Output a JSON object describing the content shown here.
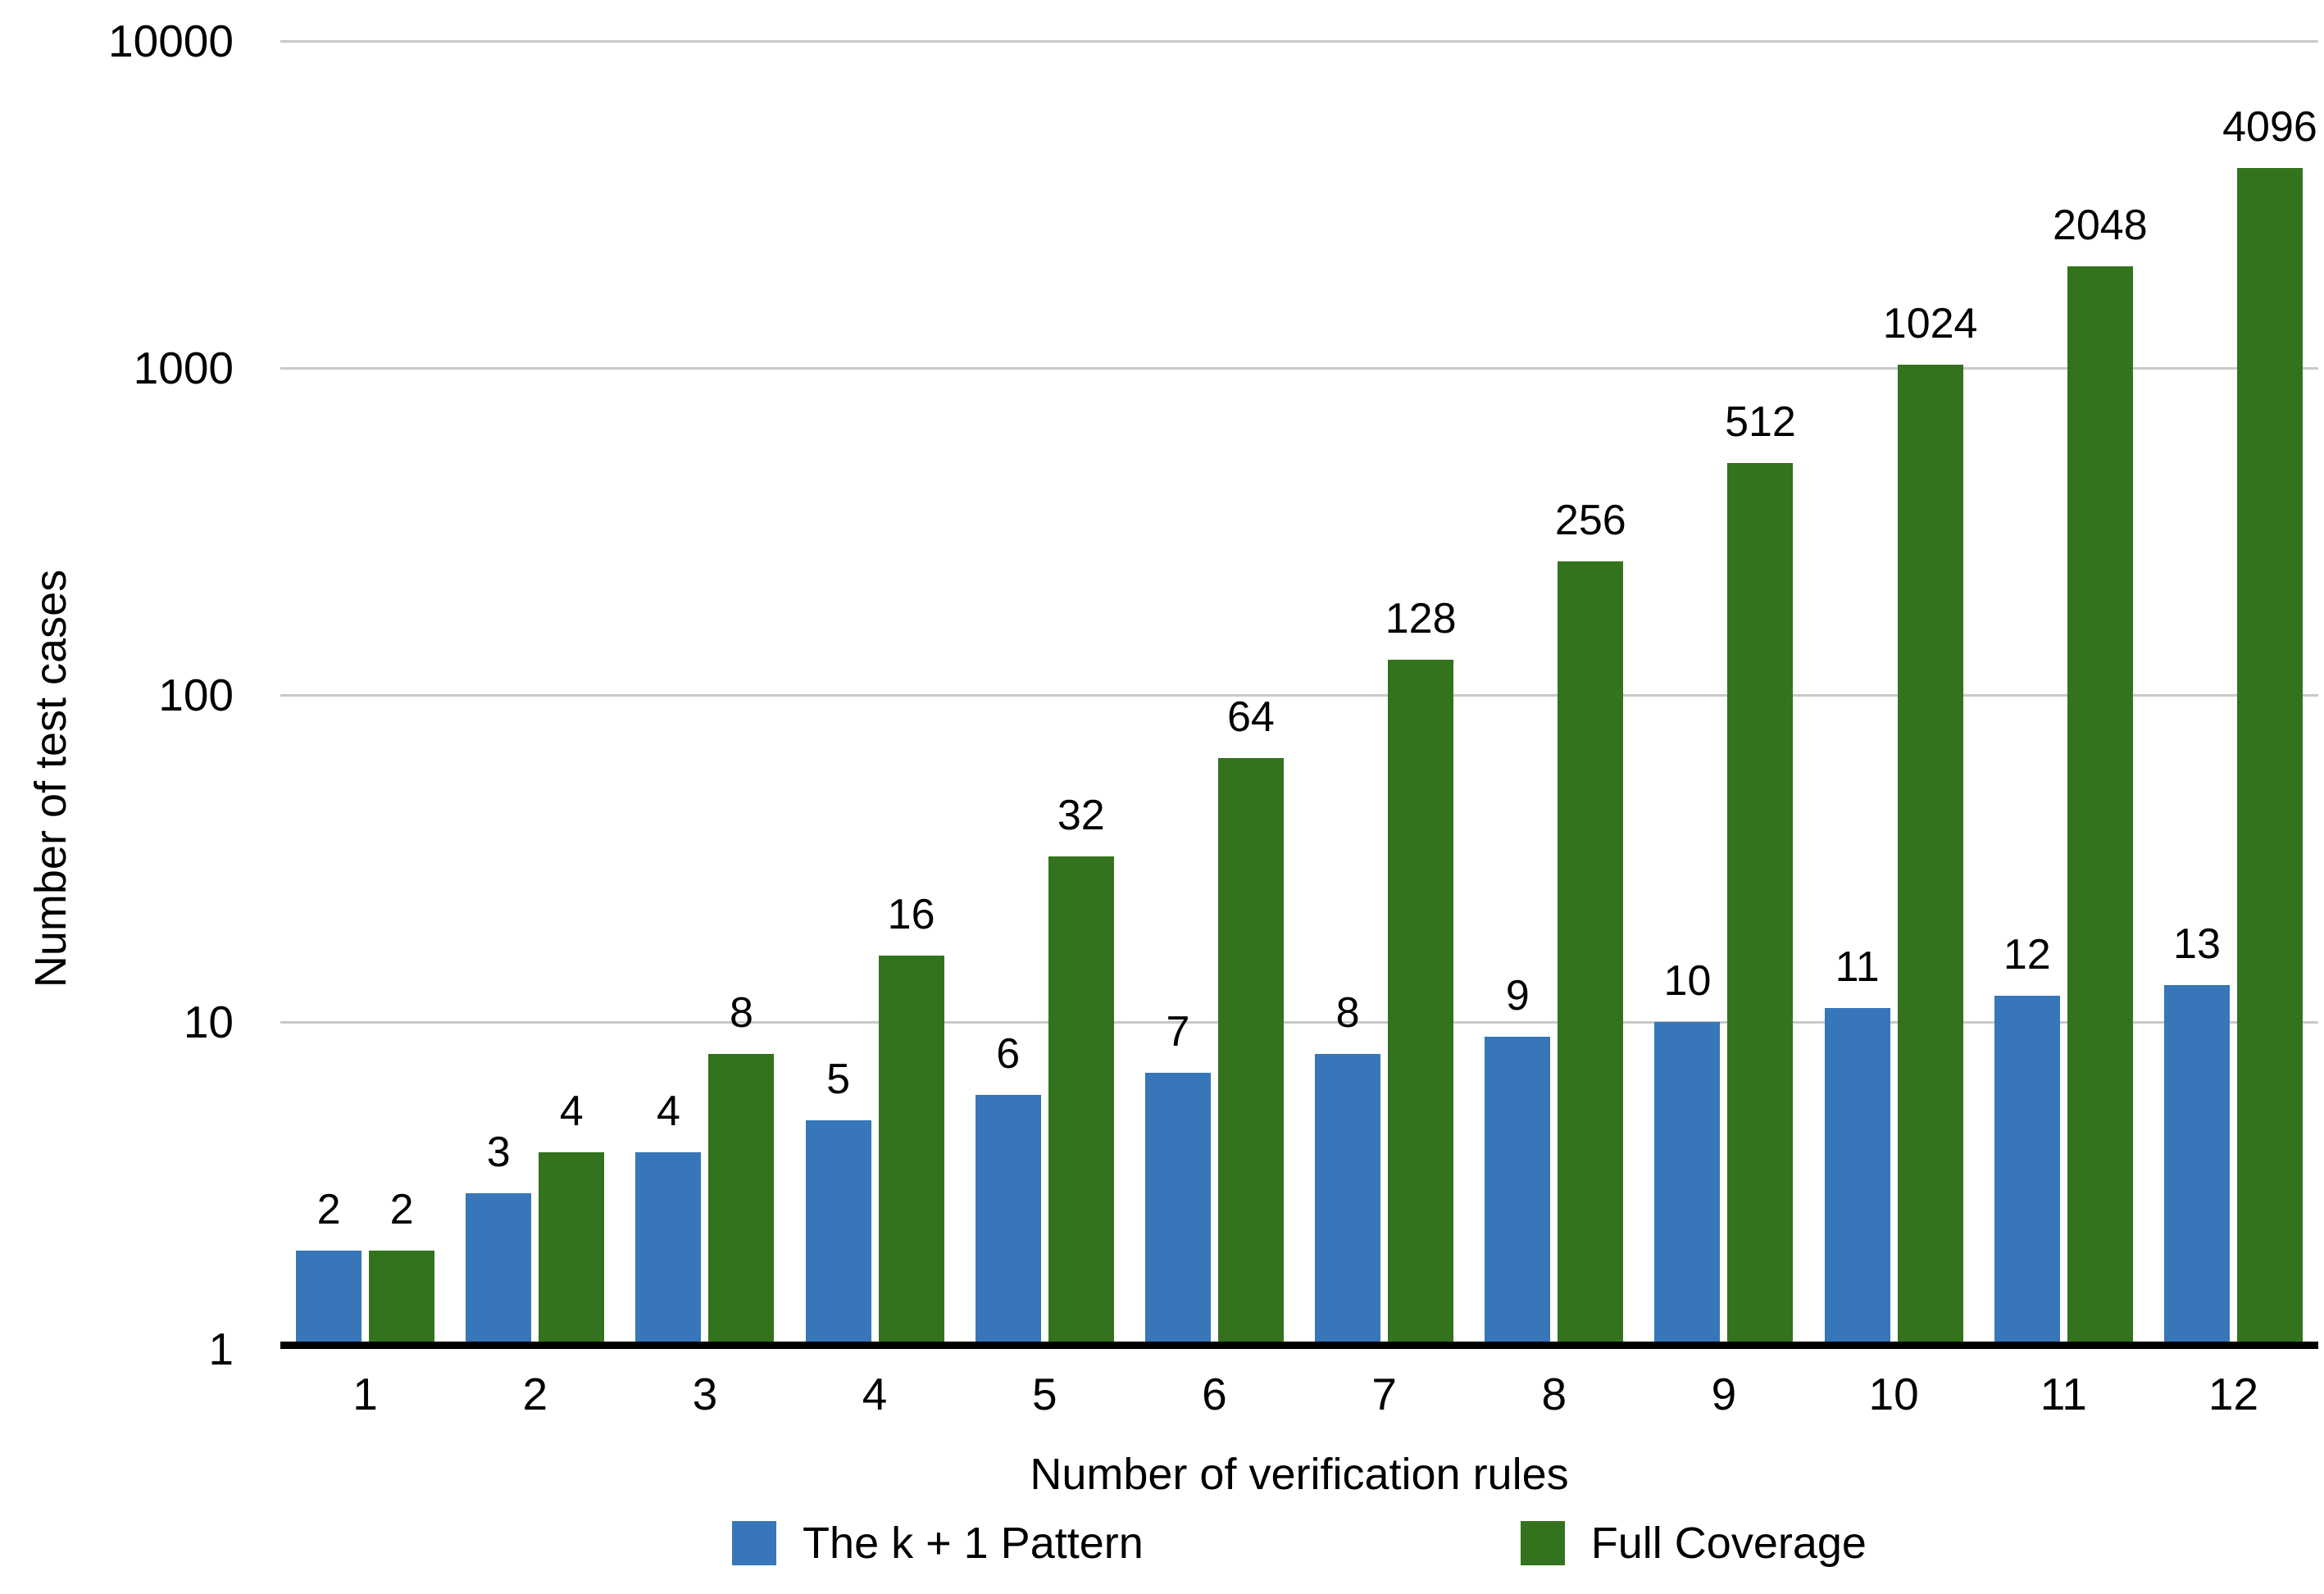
{
  "chart_data": {
    "type": "bar",
    "title": "",
    "categories": [
      "1",
      "2",
      "3",
      "4",
      "5",
      "6",
      "7",
      "8",
      "9",
      "10",
      "11",
      "12"
    ],
    "series": [
      {
        "name": "The k + 1 Pattern",
        "color": "#3776B8",
        "values": [
          2,
          3,
          4,
          5,
          6,
          7,
          8,
          9,
          10,
          11,
          12,
          13
        ]
      },
      {
        "name": "Full Coverage",
        "color": "#33731D",
        "values": [
          2,
          4,
          8,
          16,
          32,
          64,
          128,
          256,
          512,
          1024,
          2048,
          4096
        ]
      }
    ],
    "xlabel": "Number of verification rules",
    "ylabel": "Number of test cases",
    "y_scale": "log10",
    "y_ticks": [
      1,
      10,
      100,
      1000,
      10000
    ],
    "ylim": [
      1,
      10000
    ],
    "grid": "horizontal",
    "gridline_color": "#c9c9c9",
    "axis_line_color": "#000000",
    "bar_value_labels": true,
    "legend_position": "bottom"
  }
}
